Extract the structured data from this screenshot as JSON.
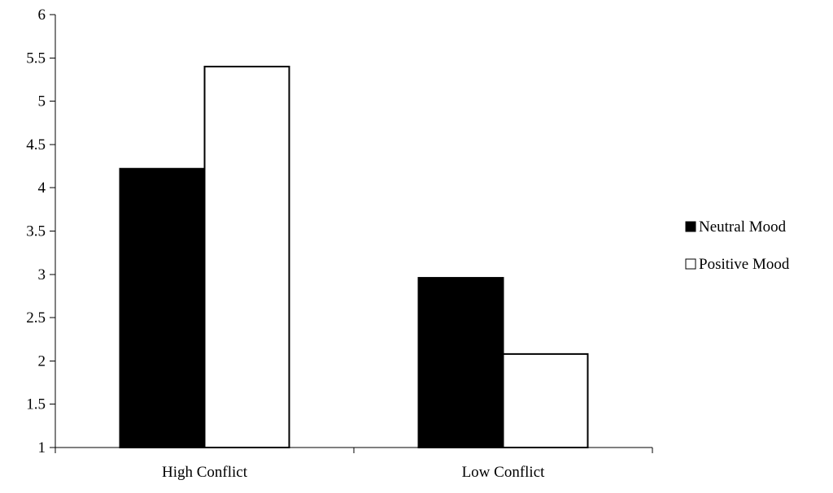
{
  "chart_data": {
    "type": "bar",
    "title": "",
    "xlabel": "",
    "ylabel": "",
    "categories": [
      "High Conflict",
      "Low Conflict"
    ],
    "series": [
      {
        "name": "Neutral Mood",
        "values": [
          4.22,
          2.96
        ],
        "color": "#000000"
      },
      {
        "name": "Positive Mood",
        "values": [
          5.4,
          2.08
        ],
        "color": "#ffffff"
      }
    ],
    "ylim": [
      1,
      6
    ],
    "y_ticks": [
      "1",
      "1.5",
      "2",
      "2.5",
      "3",
      "3.5",
      "4",
      "4.5",
      "5",
      "5.5",
      "6"
    ],
    "grid": false,
    "legend_position": "right"
  }
}
